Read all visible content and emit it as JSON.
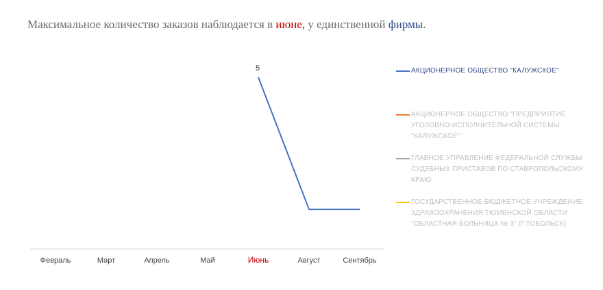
{
  "title": {
    "part1": "Максимальное количество заказов наблюдается в ",
    "highlight_month": "июне,",
    "part2": "  у единственной ",
    "highlight_firm": "фирмы",
    "part3": "."
  },
  "colors": {
    "series1": "#4472c4",
    "series2": "#ed7d31",
    "series3": "#a5a5a5",
    "series4": "#ffc000",
    "highlight_red": "#c00000",
    "axis": "#d9d9d9"
  },
  "chart_data": {
    "type": "line",
    "categories": [
      "Февраль",
      "Март",
      "Апрель",
      "Май",
      "Июнь",
      "Август",
      "Сентябрь"
    ],
    "highlight_category": "Июнь",
    "series": [
      {
        "name": "АКЦИОНЕРНОЕ ОБЩЕСТВО \"КАЛУЖСКОЕ\"",
        "values": [
          null,
          null,
          null,
          null,
          5,
          0,
          0
        ],
        "data_labels": [
          null,
          null,
          null,
          null,
          "5",
          null,
          null
        ]
      },
      {
        "name": "АКЦИОНЕРНОЕ ОБЩЕСТВО \"ПРЕДПРИЯТИЕ УГОЛОВНО-ИСПОЛНИТЕЛЬНОЙ СИСТЕМЫ \"КАЛУЖСКОЕ\"",
        "values": [
          null,
          null,
          null,
          null,
          null,
          null,
          null
        ]
      },
      {
        "name": "ГЛАВНОЕ УПРАВЛЕНИЕ ФЕДЕРАЛЬНОЙ СЛУЖБЫ СУДЕБНЫХ ПРИСТАВОВ ПО СТАВРОПОЛЬСКОМУ КРАЮ",
        "values": [
          null,
          null,
          null,
          null,
          null,
          null,
          null
        ]
      },
      {
        "name": "ГОСУДАРСТВЕННОЕ БЮДЖЕТНОЕ УЧРЕЖДЕНИЕ ЗДРАВООХРАНЕНИЯ ТЮМЕНСКОЙ ОБЛАСТИ \"ОБЛАСТНАЯ БОЛЬНИЦА № 3\" (Г.ТОБОЛЬСК)",
        "values": [
          null,
          null,
          null,
          null,
          null,
          null,
          null
        ]
      }
    ],
    "ylim": [
      -1.5,
      5
    ],
    "grid": false,
    "legend": "right"
  }
}
